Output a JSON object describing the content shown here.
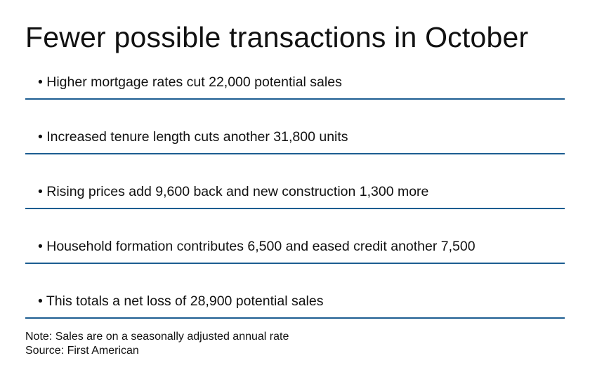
{
  "title": "Fewer possible transactions in October",
  "items": [
    {
      "text": "• Higher mortgage rates cut 22,000 potential sales"
    },
    {
      "text": "• Increased tenure length cuts another 31,800 units"
    },
    {
      "text": "• Rising prices add 9,600 back and new construction 1,300 more"
    },
    {
      "text": "• Household formation contributes 6,500 and eased credit another 7,500"
    },
    {
      "text": "• This totals a net loss of 28,900 potential sales"
    }
  ],
  "note": "Note: Sales are on a seasonally adjusted annual rate",
  "source": "Source: First American",
  "colors": {
    "divider": "#1c5d91",
    "text": "#111111"
  }
}
